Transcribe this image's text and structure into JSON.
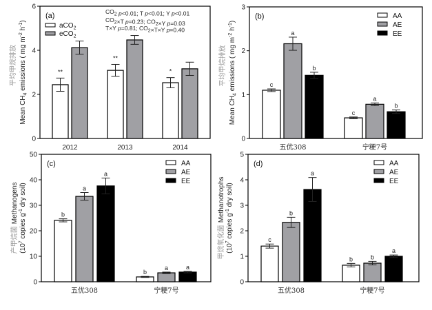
{
  "colors": {
    "AA": "#ffffff",
    "AE": "#a0a0a4",
    "EE": "#000000",
    "aCO2": "#ffffff",
    "eCO2": "#a0a0a4"
  },
  "chart_data": [
    {
      "id": "a",
      "type": "bar",
      "panel_label": "(a)",
      "title": "",
      "ylabel_cn": "平均甲烷排放",
      "ylabel": "Mean CH4 emissions ( mg m-2 h-1)",
      "xlabel": "",
      "categories": [
        "2012",
        "2013",
        "2014"
      ],
      "ylim": [
        0,
        6
      ],
      "yticks": [
        0,
        2,
        4,
        6
      ],
      "legend_position": "top-left",
      "series": [
        {
          "name": "aCO2",
          "key": "aCO2",
          "values": [
            2.44,
            3.09,
            2.53
          ],
          "errors": [
            0.3,
            0.27,
            0.23
          ],
          "labels": [
            "**",
            "**",
            "*"
          ]
        },
        {
          "name": "eCO2",
          "key": "eCO2",
          "values": [
            4.12,
            4.47,
            3.16
          ],
          "errors": [
            0.3,
            0.2,
            0.3
          ],
          "labels": [
            "",
            "",
            ""
          ]
        }
      ],
      "annotations": [
        "CO2  p<0.01;  T  p<0.01;  Y p<0.01",
        "CO2×T p=0.23;  CO2×Y        p=0.03",
        "T×Y     p=0.81;  CO2×T×Y    p=0.40"
      ]
    },
    {
      "id": "b",
      "type": "bar",
      "panel_label": "(b)",
      "title": "",
      "ylabel_cn": "平均甲烷排放",
      "ylabel": "Mean CH4 emissions ( mg m-2 h-1)",
      "xlabel": "",
      "categories": [
        "五优308",
        "宁粳7号"
      ],
      "ylim": [
        0,
        3
      ],
      "yticks": [
        0,
        1,
        2,
        3
      ],
      "legend_position": "top-right",
      "series": [
        {
          "name": "AA",
          "key": "AA",
          "values": [
            1.1,
            0.47
          ],
          "errors": [
            0.03,
            0.02
          ],
          "labels": [
            "c",
            "c"
          ]
        },
        {
          "name": "AE",
          "key": "AE",
          "values": [
            2.16,
            0.78
          ],
          "errors": [
            0.15,
            0.03
          ],
          "labels": [
            "a",
            "a"
          ]
        },
        {
          "name": "EE",
          "key": "EE",
          "values": [
            1.44,
            0.61
          ],
          "errors": [
            0.07,
            0.04
          ],
          "labels": [
            "b",
            "b"
          ]
        }
      ]
    },
    {
      "id": "c",
      "type": "bar",
      "panel_label": "(c)",
      "title": "",
      "ylabel_cn": "产甲烷菌",
      "ylabel": "Methanogens",
      "ylabel2": "(107 copies g-1 dry soil)",
      "xlabel": "",
      "categories": [
        "五优308",
        "宁粳7号"
      ],
      "ylim": [
        0,
        50
      ],
      "yticks": [
        0,
        10,
        20,
        30,
        40,
        50
      ],
      "legend_position": "top-right",
      "series": [
        {
          "name": "AA",
          "key": "AA",
          "values": [
            24.1,
            1.9
          ],
          "errors": [
            0.6,
            0.2
          ],
          "labels": [
            "b",
            "b"
          ]
        },
        {
          "name": "AE",
          "key": "AE",
          "values": [
            33.5,
            3.5
          ],
          "errors": [
            1.5,
            0.3
          ],
          "labels": [
            "a",
            "a"
          ]
        },
        {
          "name": "EE",
          "key": "EE",
          "values": [
            37.6,
            3.8
          ],
          "errors": [
            3.1,
            0.3
          ],
          "labels": [
            "a",
            "a"
          ]
        }
      ]
    },
    {
      "id": "d",
      "type": "bar",
      "panel_label": "(d)",
      "title": "",
      "ylabel_cn": "甲烷氧化菌",
      "ylabel": "Methanotrophs",
      "ylabel2": "(107 copies g-1 dry soil)",
      "xlabel": "",
      "categories": [
        "五优308",
        "宁粳7号"
      ],
      "ylim": [
        0,
        5
      ],
      "yticks": [
        0,
        1,
        2,
        3,
        4,
        5
      ],
      "legend_position": "top-right",
      "series": [
        {
          "name": "AA",
          "key": "AA",
          "values": [
            1.4,
            0.65
          ],
          "errors": [
            0.08,
            0.07
          ],
          "labels": [
            "c",
            "b"
          ]
        },
        {
          "name": "AE",
          "key": "AE",
          "values": [
            2.33,
            0.73
          ],
          "errors": [
            0.2,
            0.07
          ],
          "labels": [
            "b",
            "b"
          ]
        },
        {
          "name": "EE",
          "key": "EE",
          "values": [
            3.62,
            1.0
          ],
          "errors": [
            0.47,
            0.05
          ],
          "labels": [
            "a",
            "a"
          ]
        }
      ]
    }
  ]
}
